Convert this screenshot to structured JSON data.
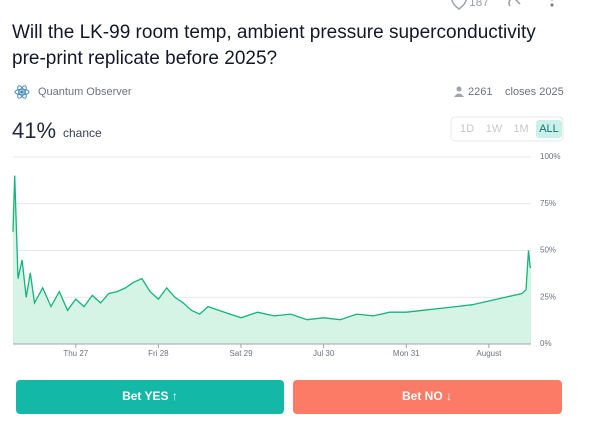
{
  "header": {
    "likes": "187",
    "title_lines": [
      "Will the LK-99 room temp, ambient pressure superconductivity",
      "pre-print replicate before 2025?"
    ]
  },
  "author": "Quantum Observer",
  "traders": "2261",
  "closes": "closes 2025",
  "probability": "41%",
  "probability_label": "chance",
  "ranges": [
    "1D",
    "1W",
    "1M",
    "ALL"
  ],
  "active_range": "ALL",
  "chart_data": {
    "type": "line",
    "x": [
      26.24,
      26.26,
      26.3,
      26.35,
      26.4,
      26.45,
      26.5,
      26.6,
      26.7,
      26.8,
      26.9,
      27.0,
      27.1,
      27.2,
      27.3,
      27.4,
      27.5,
      27.6,
      27.7,
      27.8,
      27.9,
      28.0,
      28.1,
      28.2,
      28.3,
      28.4,
      28.5,
      28.6,
      28.8,
      29.0,
      29.2,
      29.4,
      29.6,
      29.8,
      30.0,
      30.2,
      30.4,
      30.6,
      30.8,
      31.0,
      31.2,
      31.4,
      31.6,
      31.8,
      32.0,
      32.2,
      32.4,
      32.45,
      32.48,
      32.5,
      32.51
    ],
    "series": [
      {
        "color": "#14b47a",
        "values": [
          60,
          90,
          35,
          45,
          25,
          38,
          22,
          30,
          20,
          28,
          18,
          24,
          20,
          26,
          22,
          27,
          28,
          30,
          33,
          35,
          28,
          24,
          30,
          25,
          22,
          18,
          16,
          20,
          17,
          14,
          17,
          15,
          16,
          13,
          14,
          13,
          16,
          15,
          17,
          17,
          18,
          19,
          20,
          21,
          23,
          25,
          27,
          29,
          50,
          41,
          41
        ]
      }
    ],
    "xlim": [
      26.24,
      32.51
    ],
    "xticks": [
      {
        "value": 27,
        "label": "Thu 27"
      },
      {
        "value": 28,
        "label": "Fri 28"
      },
      {
        "value": 29,
        "label": "Sat 29"
      },
      {
        "value": 30,
        "label": "Jul 30"
      },
      {
        "value": 31,
        "label": "Mon 31"
      },
      {
        "value": 32,
        "label": "August"
      }
    ],
    "ylim": [
      0,
      100
    ],
    "yticks": [
      {
        "value": 0,
        "label": "0%"
      },
      {
        "value": 25,
        "label": "25%"
      },
      {
        "value": 50,
        "label": "50%"
      },
      {
        "value": 75,
        "label": "75%"
      },
      {
        "value": 100,
        "label": "100%"
      }
    ],
    "grid": true,
    "fill_color": "#d5f4e6"
  },
  "buttons": {
    "yes": "Bet YES ↑",
    "no": "Bet NO ↓"
  }
}
